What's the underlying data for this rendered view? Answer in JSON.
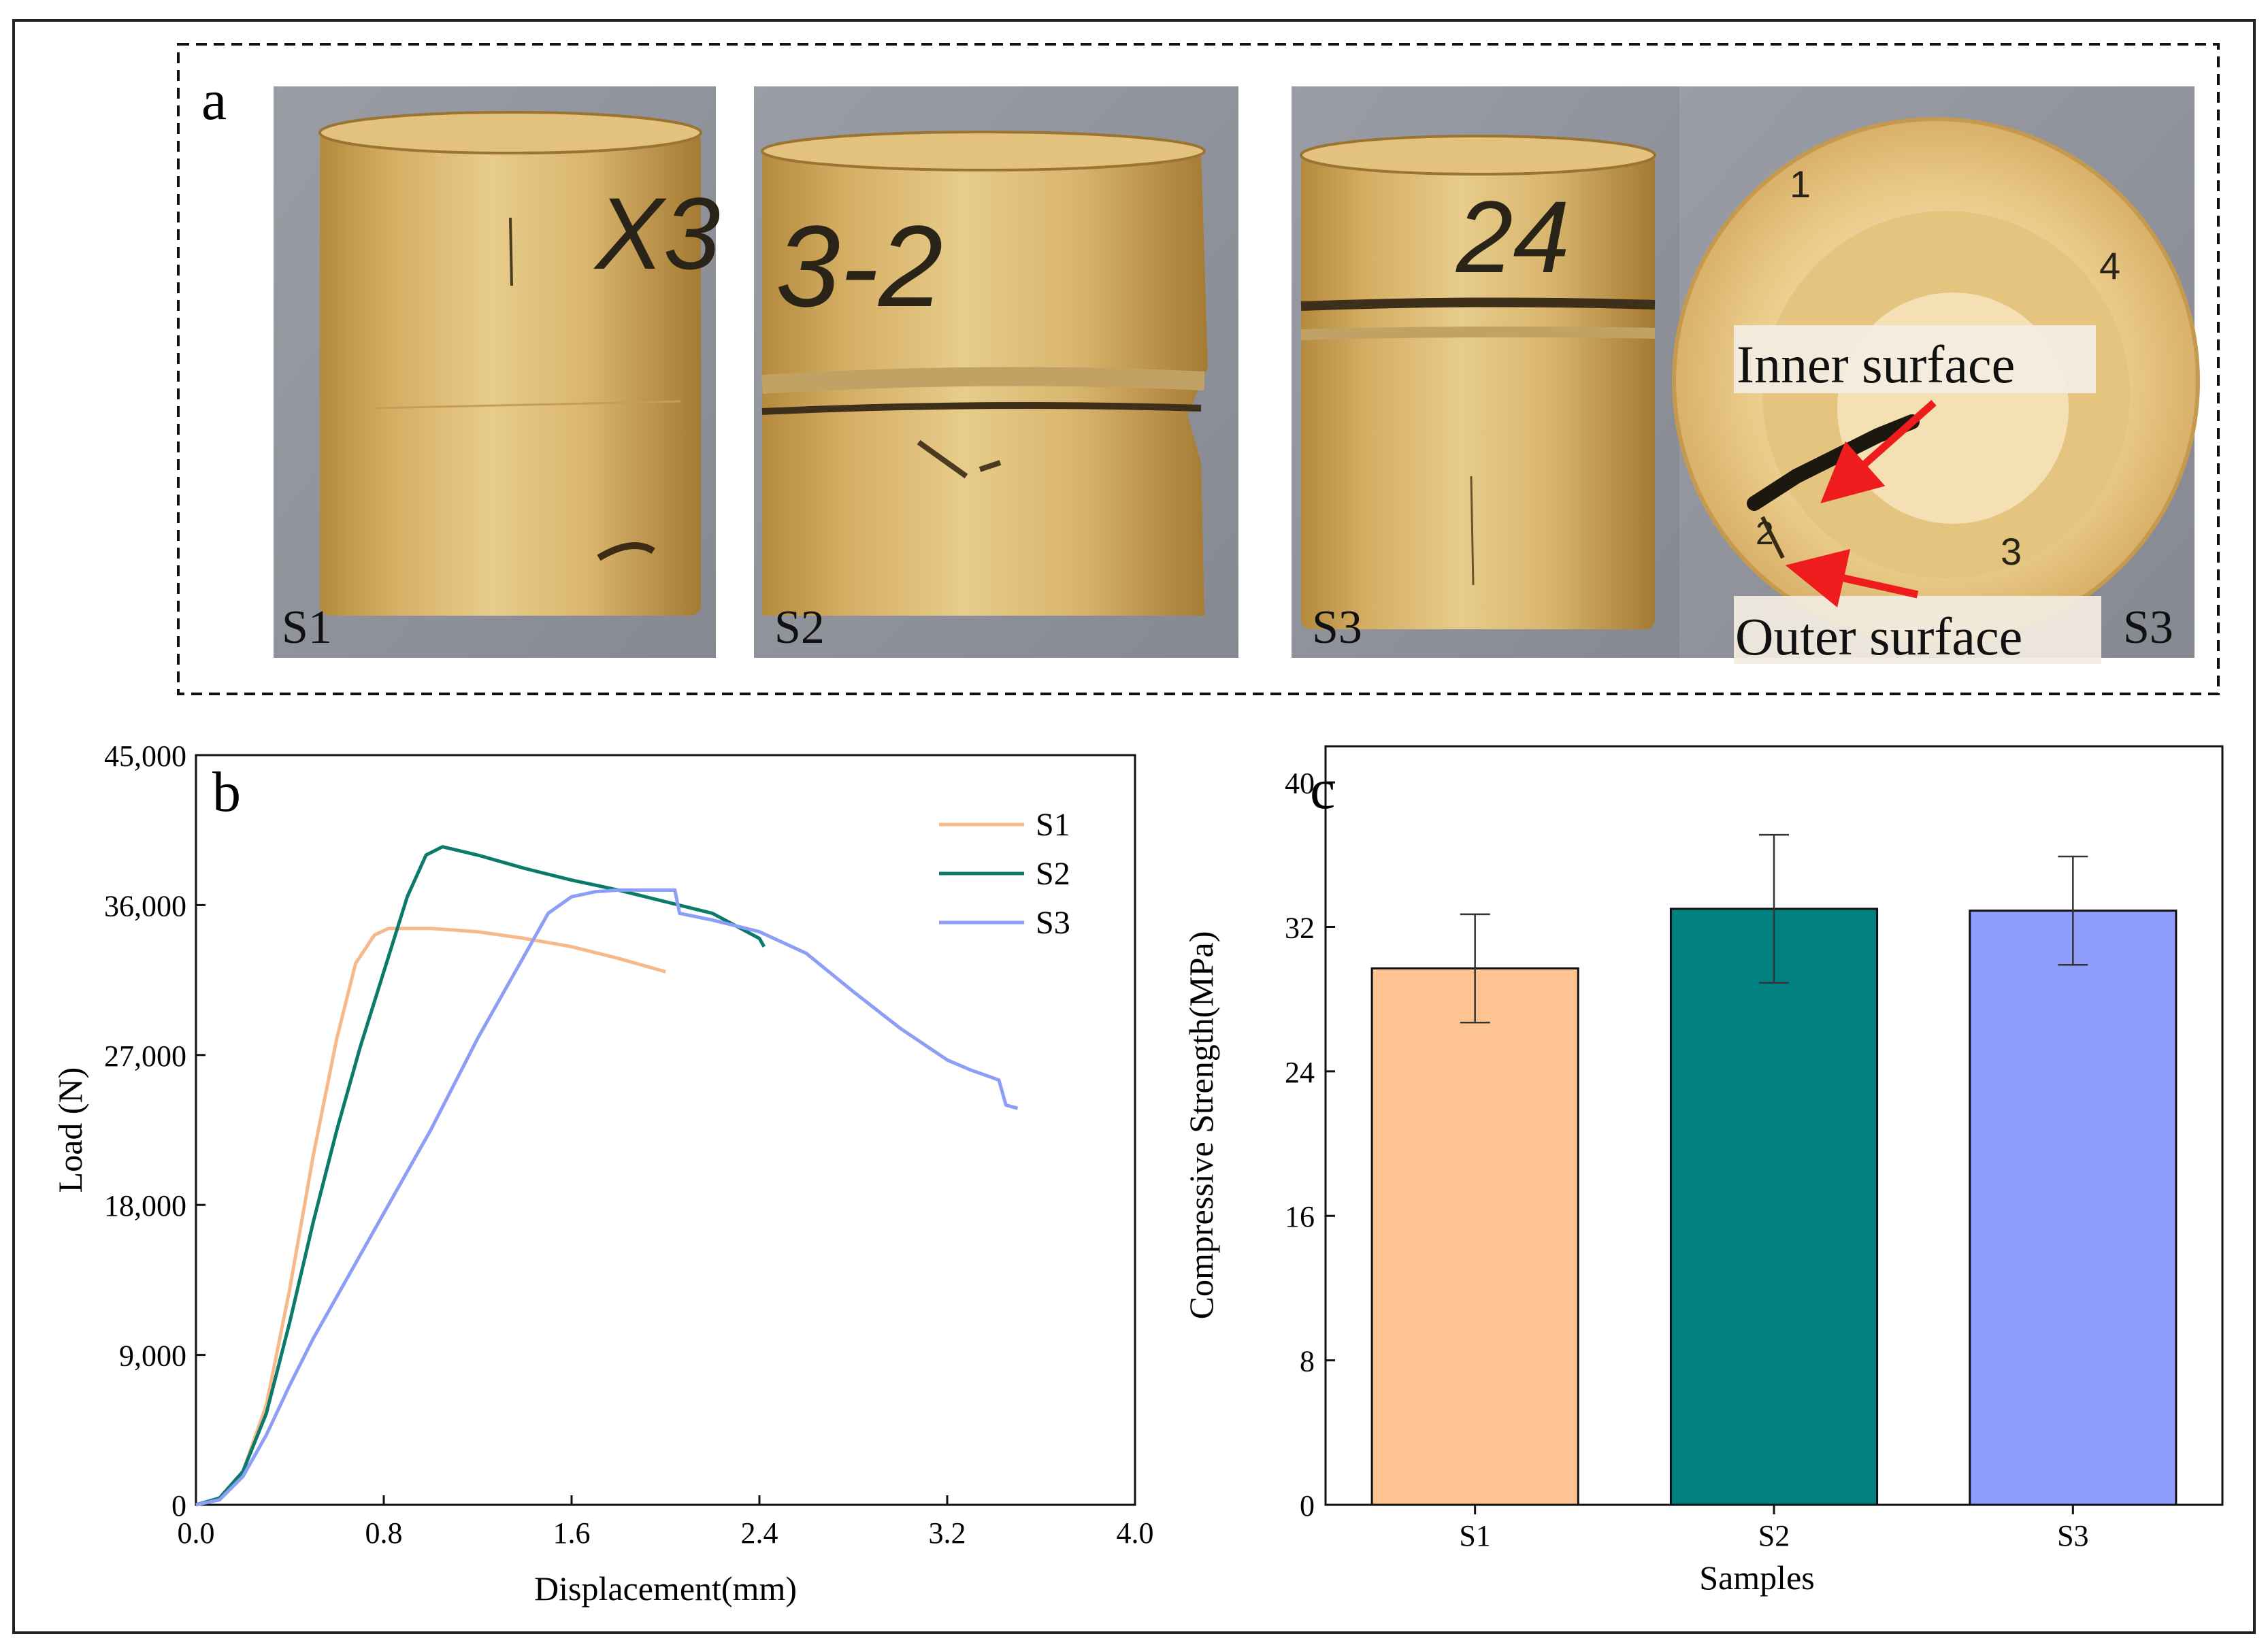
{
  "panels": {
    "a": {
      "letter": "a",
      "photo_labels": [
        "S1",
        "S2",
        "S3",
        "S3"
      ],
      "sample_markings": [
        "X3",
        "3-2",
        "24",
        "1",
        "4",
        "3",
        "2"
      ],
      "annotations": {
        "inner": "Inner surface",
        "outer": "Outer surface"
      }
    },
    "b": {
      "letter": "b"
    },
    "c": {
      "letter": "c"
    }
  },
  "chart_data": [
    {
      "type": "line",
      "title": "",
      "xlabel": "Displacement(mm)",
      "ylabel": "Load (N)",
      "xlim": [
        0,
        4.0
      ],
      "ylim": [
        0,
        45000
      ],
      "xticks": [
        0.0,
        0.8,
        1.6,
        2.4,
        3.2,
        4.0
      ],
      "xtick_labels": [
        "0.0",
        "0.8",
        "1.6",
        "2.4",
        "3.2",
        "4.0"
      ],
      "yticks": [
        0,
        9000,
        18000,
        27000,
        36000,
        45000
      ],
      "ytick_labels": [
        "0",
        "9,000",
        "18,000",
        "27,000",
        "36,000",
        "45,000"
      ],
      "legend_position": "top-right",
      "series": [
        {
          "name": "S1",
          "color": "#F7B98A",
          "x": [
            0,
            0.1,
            0.2,
            0.3,
            0.4,
            0.5,
            0.6,
            0.68,
            0.76,
            0.82,
            1.0,
            1.2,
            1.4,
            1.6,
            1.8,
            2.0
          ],
          "y": [
            0,
            400,
            2000,
            6000,
            13000,
            21000,
            28000,
            32500,
            34200,
            34600,
            34600,
            34400,
            34000,
            33500,
            32800,
            32000
          ]
        },
        {
          "name": "S2",
          "color": "#0B7A6C",
          "x": [
            0,
            0.1,
            0.2,
            0.3,
            0.4,
            0.5,
            0.6,
            0.7,
            0.8,
            0.9,
            0.98,
            1.05,
            1.2,
            1.4,
            1.6,
            1.8,
            2.0,
            2.2,
            2.4,
            2.42
          ],
          "y": [
            0,
            400,
            2000,
            5500,
            11000,
            17000,
            22500,
            27500,
            32000,
            36500,
            39000,
            39500,
            39000,
            38200,
            37500,
            36900,
            36200,
            35500,
            34000,
            33500
          ]
        },
        {
          "name": "S3",
          "color": "#8C9EF5",
          "x": [
            0,
            0.1,
            0.2,
            0.3,
            0.4,
            0.5,
            0.6,
            0.8,
            1.0,
            1.2,
            1.4,
            1.5,
            1.6,
            1.7,
            1.8,
            1.9,
            2.04,
            2.06,
            2.2,
            2.4,
            2.6,
            2.8,
            3.0,
            3.2,
            3.3,
            3.42,
            3.45,
            3.5
          ],
          "y": [
            0,
            300,
            1700,
            4200,
            7200,
            10000,
            12500,
            17500,
            22500,
            28000,
            33000,
            35500,
            36500,
            36800,
            36900,
            36900,
            36900,
            35500,
            35100,
            34400,
            33100,
            30800,
            28600,
            26700,
            26100,
            25500,
            24000,
            23800
          ]
        }
      ]
    },
    {
      "type": "bar",
      "title": "",
      "xlabel": "Samples",
      "ylabel": "Compressive Strength(MPa)",
      "ylim": [
        0,
        42
      ],
      "yticks": [
        0,
        8,
        16,
        24,
        32,
        40
      ],
      "ytick_labels": [
        "0",
        "8",
        "16",
        "24",
        "32",
        "40"
      ],
      "categories": [
        "S1",
        "S2",
        "S3"
      ],
      "values": [
        29.7,
        33.0,
        32.9
      ],
      "error": [
        3.0,
        4.1,
        3.0
      ],
      "colors": [
        "#FDC492",
        "#008080",
        "#8F9DFD"
      ]
    }
  ]
}
